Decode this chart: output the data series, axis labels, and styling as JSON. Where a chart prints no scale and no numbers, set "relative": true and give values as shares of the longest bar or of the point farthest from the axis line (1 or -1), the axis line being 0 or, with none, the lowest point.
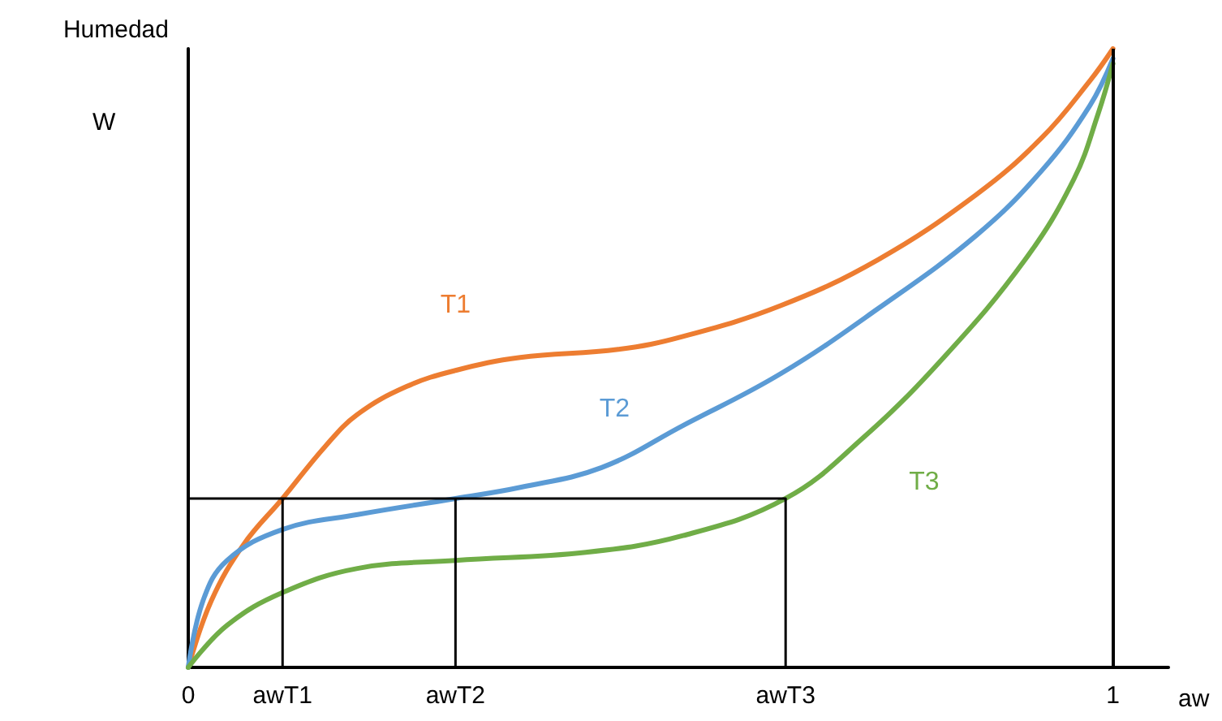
{
  "chart_data": {
    "type": "line",
    "relative": true,
    "xlabel": "aw",
    "ylabel": "Humedad",
    "annotations": [
      "W"
    ],
    "xlim": [
      0,
      1.06
    ],
    "xticks": [
      0,
      {
        "value": 0.102,
        "label": "awT1"
      },
      {
        "value": 0.289,
        "label": "awT2"
      },
      {
        "value": 0.646,
        "label": "awT3"
      },
      1
    ],
    "tick_labels": "x",
    "grid": false,
    "legend": false,
    "marker": "none",
    "line_style": "solid",
    "ref_lines": [
      {
        "axis": "x",
        "value": 1,
        "label": null,
        "color": "#000000"
      }
    ],
    "series": [
      {
        "name": "T1",
        "color": "#ed7d31",
        "x": [
          0,
          0.025,
          0.06,
          0.102,
          0.148,
          0.183,
          0.236,
          0.289,
          0.359,
          0.465,
          0.535,
          0.641,
          0.746,
          0.852,
          0.923,
          0.975,
          1.0
        ],
        "values": [
          0,
          0.108,
          0.199,
          0.273,
          0.357,
          0.409,
          0.454,
          0.48,
          0.501,
          0.514,
          0.535,
          0.585,
          0.659,
          0.764,
          0.856,
          0.948,
          1.0
        ]
      },
      {
        "name": "T2",
        "color": "#5b9bd5",
        "x": [
          0,
          0.016,
          0.042,
          0.102,
          0.183,
          0.289,
          0.359,
          0.447,
          0.535,
          0.641,
          0.746,
          0.852,
          0.923,
          0.975,
          1.0
        ],
        "values": [
          0,
          0.108,
          0.173,
          0.223,
          0.247,
          0.273,
          0.291,
          0.323,
          0.391,
          0.475,
          0.58,
          0.698,
          0.803,
          0.908,
          0.984
        ]
      },
      {
        "name": "T3",
        "color": "#70ad47",
        "x": [
          0,
          0.042,
          0.102,
          0.183,
          0.289,
          0.43,
          0.535,
          0.646,
          0.729,
          0.817,
          0.905,
          0.958,
          0.984,
          1.0
        ],
        "values": [
          0,
          0.068,
          0.121,
          0.16,
          0.173,
          0.186,
          0.213,
          0.273,
          0.37,
          0.501,
          0.659,
          0.79,
          0.895,
          0.976
        ]
      },
      {
        "color": "#000000",
        "x": [
          0,
          0.646,
          0.646,
          null,
          0.289,
          0.289,
          null,
          0.102,
          0.102
        ],
        "values": [
          0.273,
          0.273,
          0,
          null,
          0.273,
          0,
          null,
          0.273,
          0
        ]
      }
    ]
  }
}
